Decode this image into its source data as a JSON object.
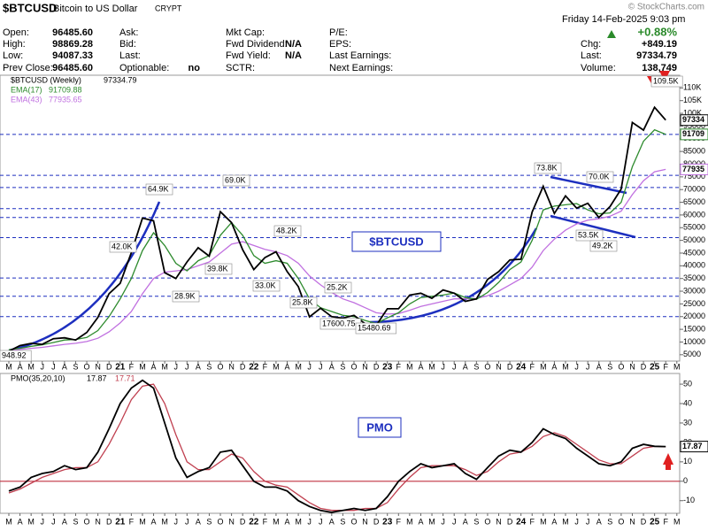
{
  "header": {
    "symbol": "$BTCUSD",
    "name": "Bitcoin to US Dollar",
    "exchange": "CRYPT",
    "copyright": "© StockCharts.com",
    "date": "Friday  14-Feb-2025  9:03 pm",
    "fields": [
      {
        "label": "Open:",
        "value": "96485.60"
      },
      {
        "label": "High:",
        "value": "98869.28"
      },
      {
        "label": "Low:",
        "value": "94087.33"
      },
      {
        "label": "Prev Close:",
        "value": "96485.60"
      },
      {
        "label": "Ask:"
      },
      {
        "label": "Bid:"
      },
      {
        "label": "Last:"
      },
      {
        "label": "Optionable:",
        "value": "no"
      },
      {
        "label": "Mkt Cap:"
      },
      {
        "label": "Fwd Dividend:",
        "value": "N/A"
      },
      {
        "label": "Fwd Yield:",
        "value": "N/A"
      },
      {
        "label": "SCTR:"
      },
      {
        "label": "P/E:"
      },
      {
        "label": "EPS:"
      },
      {
        "label": "Last Earnings:"
      },
      {
        "label": "Next Earnings:"
      },
      {
        "label": "",
        "value": "+0.88%"
      },
      {
        "label": "Chg:",
        "value": "+849.19"
      },
      {
        "label": "Last:",
        "value": "97334.79"
      },
      {
        "label": "Volume:",
        "value": "138,749"
      }
    ]
  },
  "chart_data": [
    {
      "type": "line",
      "categories": [
        "M",
        "A",
        "M",
        "J",
        "J",
        "A",
        "S",
        "O",
        "N",
        "D",
        "21",
        "F",
        "M",
        "A",
        "M",
        "J",
        "J",
        "A",
        "S",
        "O",
        "N",
        "D",
        "22",
        "F",
        "M",
        "A",
        "M",
        "J",
        "J",
        "A",
        "S",
        "O",
        "N",
        "D",
        "23",
        "F",
        "M",
        "A",
        "M",
        "J",
        "J",
        "A",
        "S",
        "O",
        "N",
        "D",
        "24",
        "F",
        "M",
        "A",
        "M",
        "J",
        "J",
        "A",
        "S",
        "O",
        "N",
        "D",
        "25",
        "F",
        "M"
      ],
      "series": [
        {
          "name": "$BTCUSD (Weekly)",
          "legend_value": "97334.79",
          "last_label": "97334",
          "color": "#000000",
          "values": [
            6400,
            8600,
            9450,
            9100,
            11300,
            11650,
            10780,
            13800,
            19700,
            29000,
            33100,
            45200,
            58800,
            57700,
            37300,
            35000,
            41500,
            47100,
            43800,
            61300,
            57000,
            46300,
            38500,
            43200,
            45500,
            37700,
            31800,
            19900,
            23300,
            20000,
            19400,
            20500,
            17200,
            16500,
            23100,
            23100,
            28500,
            29200,
            27200,
            30500,
            29200,
            26000,
            27000,
            34600,
            37700,
            42300,
            42600,
            61200,
            71300,
            60600,
            67500,
            62700,
            64600,
            59000,
            63300,
            70200,
            96400,
            93400,
            102400,
            97334.79,
            null
          ]
        },
        {
          "name": "EMA(17)",
          "legend_value": "91709.88",
          "last_label": "91709",
          "color": "#2e8b2e",
          "values": [
            7000,
            7500,
            8300,
            8900,
            9800,
            10800,
            11000,
            11800,
            14500,
            20000,
            27000,
            35000,
            46000,
            53000,
            48000,
            41000,
            38000,
            42000,
            44000,
            52000,
            57000,
            52000,
            44000,
            41000,
            42000,
            41000,
            35000,
            27000,
            23500,
            22000,
            20500,
            20000,
            18500,
            17300,
            19500,
            21500,
            25000,
            27500,
            28000,
            28500,
            29300,
            27500,
            26800,
            29500,
            33500,
            38500,
            41500,
            50000,
            62000,
            63500,
            64000,
            64500,
            62000,
            60500,
            60800,
            65000,
            79000,
            89000,
            93500,
            91709.88,
            null
          ]
        },
        {
          "name": "EMA(43)",
          "legend_value": "77935.65",
          "last_label": "77935",
          "color": "#c070e0",
          "values": [
            6800,
            7100,
            7500,
            7900,
            8500,
            9100,
            9500,
            10200,
            11500,
            14000,
            17500,
            22000,
            29000,
            35000,
            37500,
            38000,
            38500,
            40000,
            41500,
            45000,
            48500,
            49500,
            48000,
            46500,
            45500,
            44000,
            41000,
            36000,
            32500,
            29500,
            27000,
            25500,
            23500,
            21500,
            21000,
            21200,
            22500,
            24000,
            25000,
            26000,
            27000,
            27000,
            27200,
            28200,
            30000,
            32500,
            35000,
            39500,
            46000,
            50500,
            54000,
            56500,
            58000,
            58500,
            59500,
            61500,
            68000,
            73500,
            77000,
            77935.65,
            null
          ]
        }
      ],
      "ylim": [
        2500,
        115000
      ],
      "yticks": [
        5000,
        10000,
        15000,
        20000,
        25000,
        30000,
        35000,
        40000,
        45000,
        50000,
        55000,
        60000,
        65000,
        70000,
        75000,
        80000,
        85000,
        90000,
        95000,
        {
          "value": 100000,
          "label": "100K"
        },
        {
          "value": 105000,
          "label": "105K"
        },
        {
          "value": 110000,
          "label": "110K"
        }
      ],
      "hlines": [
        91700,
        75600,
        70800,
        62500,
        59000,
        51100,
        35200,
        28000,
        20000
      ],
      "annotations": [
        "948.92",
        "64.9K",
        "69.0K",
        "42.0K",
        "39.8K",
        "28.9K",
        "48.2K",
        "33.0K",
        "25.2K",
        "25.8K",
        "17600.75",
        "15480.69",
        "73.8K",
        "70.0K",
        "53.5K",
        "49.2K",
        "109.5K",
        "$BTCUSD"
      ],
      "grid": false
    },
    {
      "type": "line",
      "categories": [
        "M",
        "A",
        "M",
        "J",
        "J",
        "A",
        "S",
        "O",
        "N",
        "D",
        "21",
        "F",
        "M",
        "A",
        "M",
        "J",
        "J",
        "A",
        "S",
        "O",
        "N",
        "D",
        "22",
        "F",
        "M",
        "A",
        "M",
        "J",
        "J",
        "A",
        "S",
        "O",
        "N",
        "D",
        "23",
        "F",
        "M",
        "A",
        "M",
        "J",
        "J",
        "A",
        "S",
        "O",
        "N",
        "D",
        "24",
        "F",
        "M",
        "A",
        "M",
        "J",
        "J",
        "A",
        "S",
        "O",
        "N",
        "D",
        "25",
        "F",
        "M"
      ],
      "series": [
        {
          "name": "PMO(35,20,10)",
          "legend_value": "17.87",
          "last_label": "17.87",
          "color": "#000000",
          "values": [
            -5,
            -3,
            2,
            4,
            5,
            8,
            6,
            7,
            15,
            27,
            40,
            48,
            52,
            48,
            30,
            12,
            2,
            5,
            7,
            15,
            16,
            8,
            0,
            -3,
            -3,
            -5,
            -10,
            -13,
            -15,
            -16,
            -15,
            -14,
            -15,
            -14,
            -8,
            0,
            5,
            9,
            7,
            8,
            9,
            4,
            1,
            7,
            13,
            16,
            15,
            20,
            27,
            24,
            22,
            17,
            13,
            9,
            8,
            10,
            17,
            19,
            18,
            17.87,
            null
          ]
        },
        {
          "legend_value": "17.71",
          "color": "#c04050",
          "values": [
            -6,
            -4,
            -1,
            2,
            4,
            6,
            7,
            7,
            10,
            19,
            30,
            42,
            49,
            50,
            40,
            24,
            10,
            6,
            6,
            10,
            14,
            12,
            5,
            0,
            -2,
            -3,
            -7,
            -11,
            -14,
            -15,
            -15,
            -15,
            -14,
            -14,
            -11,
            -4,
            2,
            7,
            8,
            8,
            8,
            6,
            3,
            5,
            10,
            14,
            15,
            18,
            23,
            25,
            23,
            19,
            15,
            11,
            9,
            9,
            13,
            17,
            18,
            17.71,
            null
          ]
        }
      ],
      "ylim": [
        -16.5,
        55.5
      ],
      "yticks": [
        -10,
        0,
        10,
        20,
        30,
        40,
        50
      ],
      "zero_line": 0,
      "annotations": [
        "PMO"
      ],
      "grid": false
    }
  ]
}
